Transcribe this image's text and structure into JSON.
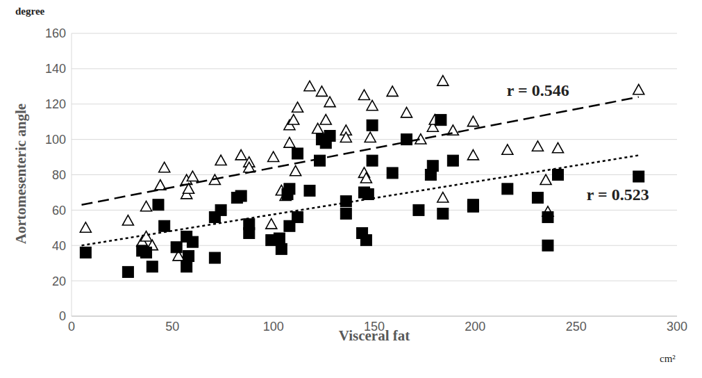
{
  "chart_data": {
    "type": "scatter",
    "xlabel": "Visceral fat",
    "ylabel": "Aortomesenteric angle",
    "xunit": "cm²",
    "yunit": "degree",
    "xlim": [
      0,
      300
    ],
    "xticks": [
      0,
      50,
      100,
      150,
      200,
      250,
      300
    ],
    "ylim": [
      0,
      160
    ],
    "yticks": [
      0,
      20,
      40,
      60,
      80,
      100,
      120,
      140,
      160
    ],
    "grid": true,
    "annotations": [
      "r = 0.546",
      "r = 0.523"
    ],
    "series": [
      {
        "type": "scatter",
        "marker": "triangle-open",
        "color": "#000000",
        "x": [
          7,
          28,
          35,
          37,
          37,
          40,
          44,
          46,
          53,
          57,
          57,
          58,
          60,
          71,
          74,
          84,
          88,
          88,
          99,
          100,
          104,
          106,
          108,
          108,
          110,
          111,
          112,
          118,
          122,
          124,
          126,
          128,
          136,
          136,
          145,
          145,
          146,
          148,
          149,
          159,
          166,
          173,
          179,
          180,
          184,
          184,
          189,
          199,
          199,
          216,
          231,
          235,
          236,
          241,
          281
        ],
        "values": [
          50,
          54,
          42,
          45,
          62,
          40,
          74,
          84,
          34,
          77,
          69,
          72,
          79,
          77,
          88,
          91,
          87,
          84,
          52,
          90,
          71,
          68,
          98,
          108,
          111,
          82,
          118,
          130,
          106,
          127,
          111,
          121,
          105,
          101,
          125,
          81,
          78,
          101,
          119,
          127,
          115,
          100,
          107,
          111,
          133,
          67,
          105,
          91,
          110,
          94,
          96,
          77,
          59,
          95,
          128
        ]
      },
      {
        "type": "scatter",
        "marker": "square",
        "color": "#000000",
        "x": [
          7,
          28,
          35,
          37,
          40,
          43,
          46,
          52,
          57,
          57,
          58,
          60,
          71,
          71,
          74,
          82,
          84,
          88,
          88,
          99,
          103,
          104,
          107,
          108,
          108,
          112,
          112,
          118,
          123,
          124,
          126,
          128,
          136,
          136,
          144,
          145,
          146,
          147,
          149,
          149,
          159,
          166,
          172,
          178,
          179,
          183,
          184,
          189,
          199,
          199,
          216,
          231,
          236,
          236,
          241,
          281
        ],
        "values": [
          36,
          25,
          37,
          36,
          28,
          63,
          51,
          39,
          45,
          28,
          34,
          42,
          33,
          56,
          60,
          67,
          68,
          52,
          47,
          43,
          44,
          38,
          69,
          72,
          51,
          92,
          56,
          71,
          88,
          100,
          98,
          102,
          65,
          58,
          47,
          70,
          43,
          69,
          108,
          88,
          81,
          100,
          60,
          80,
          85,
          111,
          58,
          88,
          62,
          63,
          72,
          67,
          56,
          40,
          80,
          79
        ]
      },
      {
        "type": "line",
        "line_style": "dashed",
        "color": "#000000",
        "x": [
          5,
          281
        ],
        "values": [
          63,
          124
        ]
      },
      {
        "type": "line",
        "line_style": "dotted",
        "color": "#000000",
        "x": [
          5,
          281
        ],
        "values": [
          40,
          91
        ]
      }
    ]
  }
}
